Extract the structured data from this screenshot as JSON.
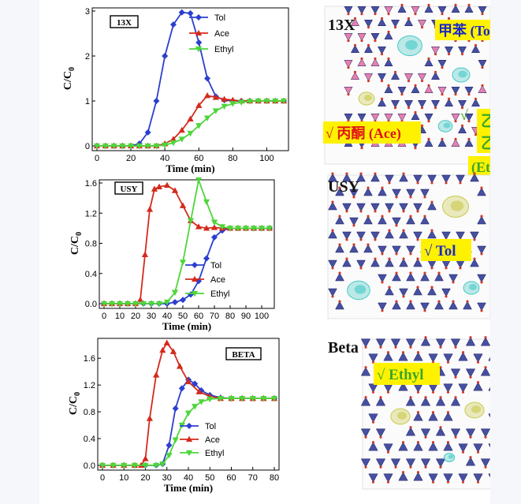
{
  "colors": {
    "tol": "#2b3fcf",
    "ace": "#d42a1c",
    "ethyl": "#4dd63a",
    "tag_bg": "#fff200",
    "tag_blue_text": "#1a28c8",
    "tag_red_text": "#e01515",
    "tag_green_text": "#3aa62a",
    "framework_blue": "#27308f",
    "framework_pink": "#e06aa0"
  },
  "chart_data": [
    {
      "type": "line",
      "tag": "13X",
      "xlabel": "Time (min)",
      "ylabel": "C/C",
      "ylabel_sub": "0",
      "xlim": [
        0,
        110
      ],
      "ylim": [
        0,
        3
      ],
      "xticks": [
        0,
        20,
        40,
        60,
        80,
        100
      ],
      "yticks": [
        0,
        1,
        2,
        3
      ],
      "ytick_labels": [
        "0",
        "1",
        "2",
        "3"
      ],
      "legend_position": "top-right",
      "series": [
        {
          "name": "Tol",
          "color": "#2b3fcf",
          "marker": "diamond",
          "x": [
            0,
            5,
            10,
            15,
            20,
            25,
            30,
            35,
            40,
            45,
            50,
            55,
            60,
            65,
            70,
            75,
            80,
            85,
            90,
            95,
            100,
            105,
            110
          ],
          "y": [
            0,
            0,
            0,
            0,
            0,
            0.05,
            0.3,
            1.0,
            2.0,
            2.7,
            2.97,
            2.95,
            2.3,
            1.5,
            1.1,
            1.02,
            1.0,
            1.0,
            1.0,
            1.0,
            1.0,
            1.0,
            1.0
          ]
        },
        {
          "name": "Ace",
          "color": "#d42a1c",
          "marker": "triangle",
          "x": [
            0,
            5,
            10,
            15,
            20,
            25,
            30,
            35,
            40,
            45,
            50,
            55,
            60,
            65,
            70,
            75,
            80,
            85,
            90,
            95,
            100,
            105,
            110
          ],
          "y": [
            0,
            0,
            0,
            0,
            0,
            0,
            0,
            0,
            0.05,
            0.15,
            0.35,
            0.6,
            0.9,
            1.12,
            1.08,
            1.04,
            1.02,
            1.0,
            1.0,
            1.0,
            1.0,
            1.0,
            1.0
          ]
        },
        {
          "name": "Ethyl",
          "color": "#4dd63a",
          "marker": "triangle-down",
          "x": [
            0,
            5,
            10,
            15,
            20,
            25,
            30,
            35,
            40,
            45,
            50,
            55,
            60,
            65,
            70,
            75,
            80,
            85,
            90,
            95,
            100,
            105,
            110
          ],
          "y": [
            0,
            0,
            0,
            0,
            0,
            0,
            0,
            0,
            0.02,
            0.07,
            0.15,
            0.28,
            0.45,
            0.62,
            0.78,
            0.88,
            0.94,
            0.97,
            0.99,
            1.0,
            1.0,
            1.0,
            1.0
          ]
        }
      ]
    },
    {
      "type": "line",
      "tag": "USY",
      "xlabel": "Time (min)",
      "ylabel": "C/C",
      "ylabel_sub": "0",
      "xlim": [
        0,
        105
      ],
      "ylim": [
        0,
        1.6
      ],
      "xticks": [
        0,
        10,
        20,
        30,
        40,
        50,
        60,
        70,
        80,
        90,
        100
      ],
      "yticks": [
        0,
        0.4,
        0.8,
        1.2,
        1.6
      ],
      "ytick_labels": [
        "0.0",
        "0.4",
        "0.8",
        "1.2",
        "1.6"
      ],
      "legend_position": "bottom-right",
      "series": [
        {
          "name": "Tol",
          "color": "#2b3fcf",
          "marker": "diamond",
          "x": [
            0,
            5,
            10,
            15,
            20,
            25,
            30,
            35,
            40,
            45,
            50,
            55,
            60,
            65,
            70,
            75,
            80,
            85,
            90,
            95,
            100,
            105
          ],
          "y": [
            0,
            0,
            0,
            0,
            0,
            0,
            0,
            0,
            0,
            0.02,
            0.05,
            0.12,
            0.3,
            0.6,
            0.88,
            0.97,
            1.0,
            1.0,
            1.0,
            1.0,
            1.0,
            1.0
          ]
        },
        {
          "name": "Ace",
          "color": "#d42a1c",
          "marker": "triangle",
          "x": [
            0,
            5,
            10,
            15,
            20,
            23,
            26,
            29,
            32,
            35,
            40,
            45,
            50,
            55,
            60,
            65,
            70,
            75,
            80,
            85,
            90,
            95,
            100,
            105
          ],
          "y": [
            0,
            0,
            0,
            0,
            0,
            0.05,
            0.65,
            1.25,
            1.52,
            1.55,
            1.57,
            1.5,
            1.3,
            1.1,
            1.02,
            1.0,
            1.01,
            1.0,
            1.0,
            1.0,
            1.0,
            1.0,
            1.0,
            1.0
          ]
        },
        {
          "name": "Ethyl",
          "color": "#4dd63a",
          "marker": "triangle-down",
          "x": [
            0,
            5,
            10,
            15,
            20,
            25,
            30,
            35,
            40,
            45,
            50,
            55,
            60,
            65,
            70,
            75,
            80,
            85,
            90,
            95,
            100,
            105
          ],
          "y": [
            0,
            0,
            0,
            0,
            0,
            0,
            0,
            0,
            0.02,
            0.15,
            0.55,
            1.1,
            1.64,
            1.35,
            1.08,
            1.02,
            1.0,
            1.0,
            1.0,
            1.0,
            1.0,
            1.0
          ]
        }
      ]
    },
    {
      "type": "line",
      "tag": "BETA",
      "xlabel": "Time (min)",
      "ylabel": "C/C",
      "ylabel_sub": "0",
      "xlim": [
        0,
        80
      ],
      "ylim": [
        0,
        1.85
      ],
      "xticks": [
        0,
        10,
        20,
        30,
        40,
        50,
        60,
        70,
        80
      ],
      "yticks": [
        0,
        0.4,
        0.8,
        1.2,
        1.6
      ],
      "ytick_labels": [
        "0.0",
        "0.4",
        "0.8",
        "1.2",
        "1.6"
      ],
      "legend_position": "bottom-right",
      "series": [
        {
          "name": "Tol",
          "color": "#2b3fcf",
          "marker": "diamond",
          "x": [
            0,
            5,
            10,
            15,
            20,
            25,
            28,
            31,
            34,
            37,
            40,
            43,
            46,
            50,
            55,
            60,
            65,
            70,
            75,
            80
          ],
          "y": [
            0,
            0,
            0,
            0,
            0,
            0,
            0.02,
            0.3,
            0.85,
            1.15,
            1.28,
            1.22,
            1.12,
            1.05,
            1.01,
            1.0,
            1.0,
            1.0,
            1.0,
            1.0
          ]
        },
        {
          "name": "Ace",
          "color": "#d42a1c",
          "marker": "triangle",
          "x": [
            0,
            5,
            10,
            15,
            18,
            20,
            22,
            25,
            28,
            30,
            33,
            36,
            40,
            45,
            50,
            55,
            60,
            65,
            70,
            75,
            80
          ],
          "y": [
            0,
            0,
            0,
            0,
            0,
            0.1,
            0.7,
            1.35,
            1.72,
            1.83,
            1.7,
            1.48,
            1.25,
            1.1,
            1.03,
            1.0,
            1.0,
            1.0,
            1.0,
            1.0,
            1.0
          ]
        },
        {
          "name": "Ethyl",
          "color": "#4dd63a",
          "marker": "triangle-down",
          "x": [
            0,
            5,
            10,
            15,
            20,
            25,
            28,
            31,
            34,
            37,
            40,
            43,
            46,
            50,
            55,
            60,
            65,
            70,
            75,
            80
          ],
          "y": [
            0,
            0,
            0,
            0,
            0,
            0,
            0.02,
            0.15,
            0.38,
            0.6,
            0.78,
            0.88,
            0.95,
            0.99,
            1.0,
            1.0,
            1.0,
            1.0,
            1.0,
            1.0
          ]
        }
      ]
    }
  ],
  "structures": [
    {
      "label": "13X",
      "tags": [
        {
          "text": "甲苯 (Tol)",
          "color_key": "tag_blue_text"
        },
        {
          "text": "√ 丙酮 (Ace)",
          "color_key": "tag_red_text"
        },
        {
          "text": "√",
          "color_key": "tag_green_text"
        },
        {
          "text": "乙酸",
          "color_key": "tag_green_text"
        },
        {
          "text": "乙酯",
          "color_key": "tag_green_text"
        },
        {
          "text": "(Ethyl)",
          "color_key": "tag_green_text"
        }
      ]
    },
    {
      "label": "USY",
      "tags": [
        {
          "text": "√ Tol",
          "color_key": "tag_blue_text"
        }
      ]
    },
    {
      "label": "Beta",
      "tags": [
        {
          "text": "√ Ethyl",
          "color_key": "tag_green_text"
        }
      ]
    }
  ]
}
